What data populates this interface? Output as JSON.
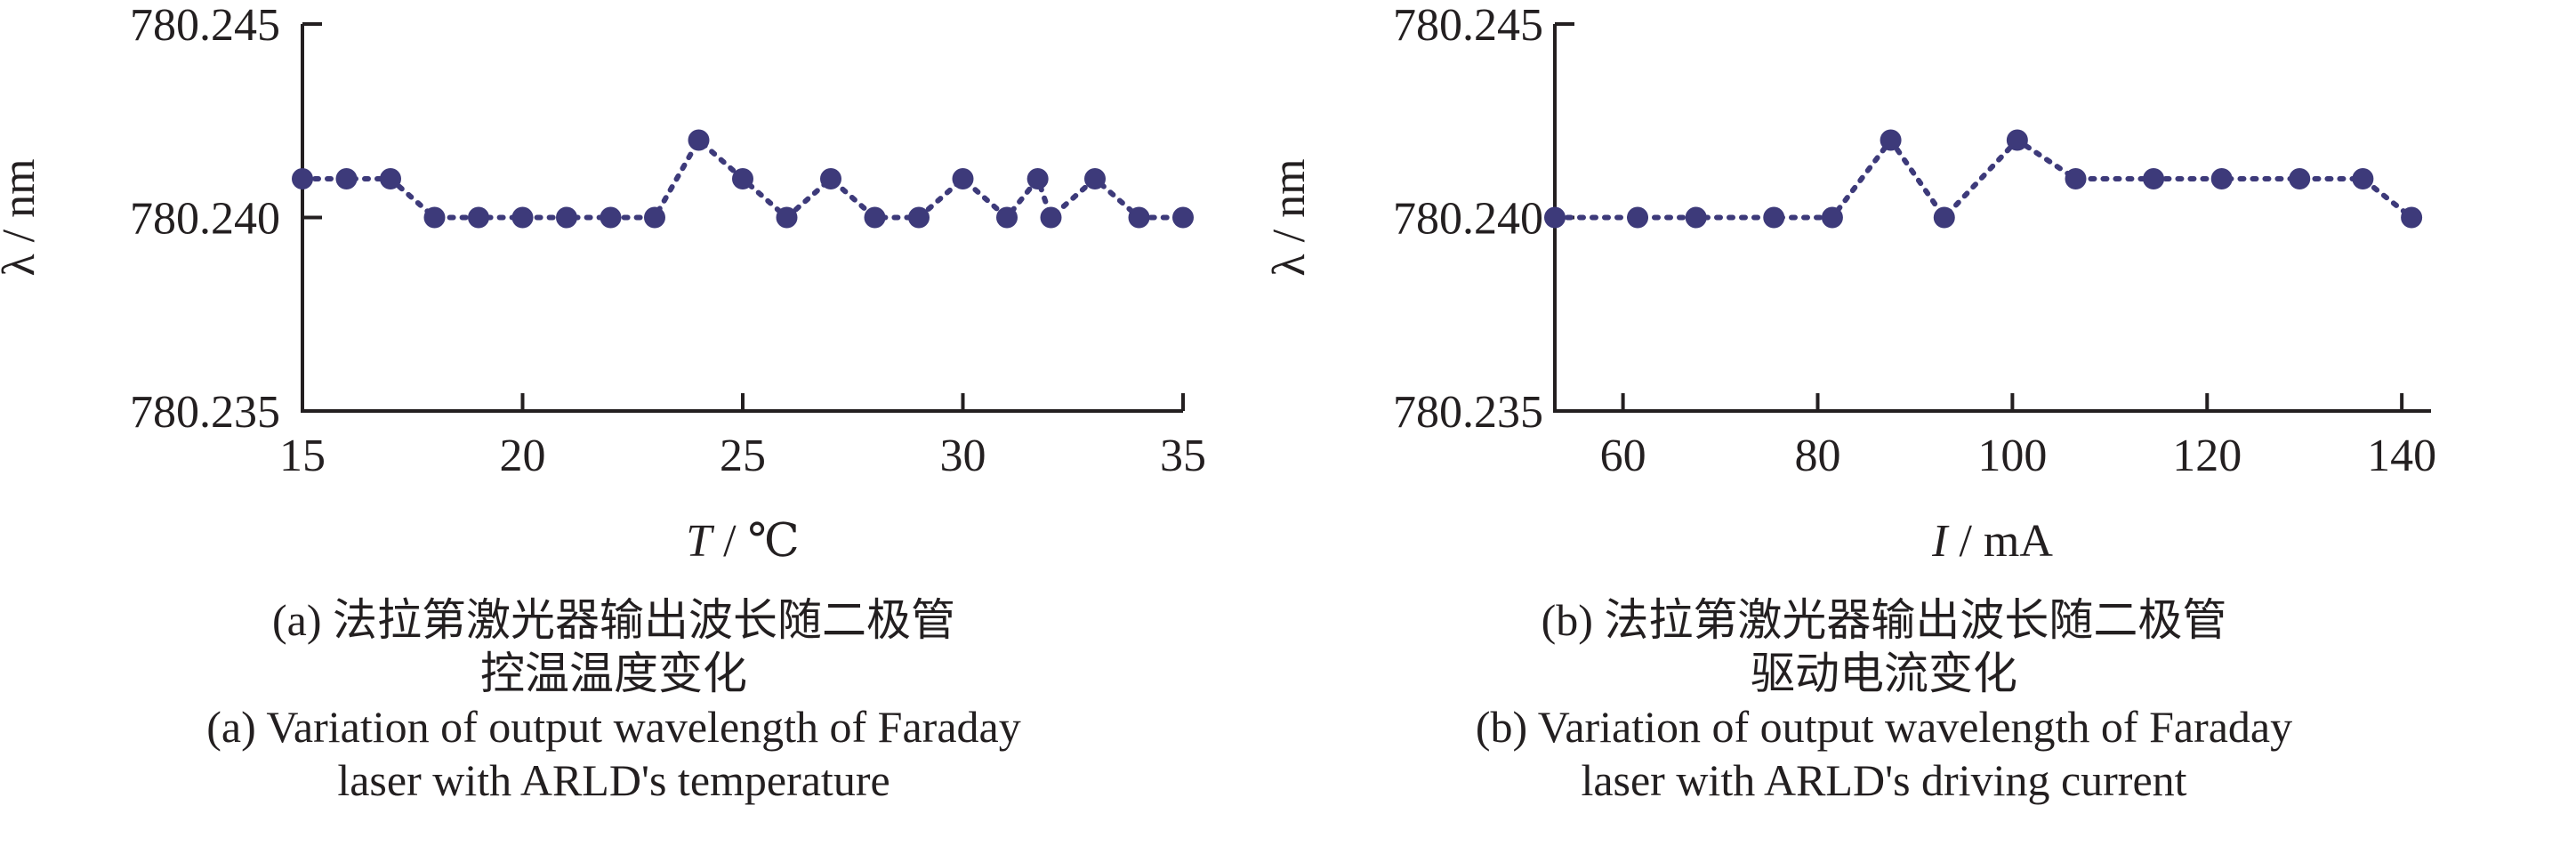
{
  "chart_data": [
    {
      "type": "scatter",
      "panel": "a",
      "xlabel_var": "T",
      "xlabel_unit": " / ℃",
      "ylabel": "λ / nm",
      "xlim": [
        15,
        35
      ],
      "ylim": [
        780.235,
        780.245
      ],
      "xticks": [
        "15",
        "20",
        "25",
        "30",
        "35"
      ],
      "xtick_values": [
        15,
        20,
        25,
        30,
        35
      ],
      "yticks": [
        "780.235",
        "780.240",
        "780.245"
      ],
      "ytick_values": [
        780.235,
        780.24,
        780.245
      ],
      "series": [
        {
          "x": [
            15,
            16,
            17,
            18,
            19,
            20,
            21,
            22,
            23,
            24,
            25,
            26,
            27,
            28,
            29,
            30,
            31,
            31.7,
            32,
            33,
            34,
            35
          ],
          "y": [
            780.241,
            780.241,
            780.241,
            780.24,
            780.24,
            780.24,
            780.24,
            780.24,
            780.24,
            780.242,
            780.241,
            780.24,
            780.241,
            780.24,
            780.24,
            780.241,
            780.24,
            780.241,
            780.24,
            780.241,
            780.24,
            780.24
          ]
        }
      ],
      "caption_cn": [
        "(a) 法拉第激光器输出波长随二极管",
        "控温温度变化"
      ],
      "caption_en": [
        "(a) Variation of output wavelength of Faraday",
        "laser with ARLD's temperature"
      ]
    },
    {
      "type": "scatter",
      "panel": "b",
      "xlabel_var": "I",
      "xlabel_unit": " / mA",
      "ylabel": "λ / nm",
      "xlim": [
        53,
        143
      ],
      "ylim": [
        780.235,
        780.245
      ],
      "xticks": [
        "60",
        "80",
        "100",
        "120",
        "140"
      ],
      "xtick_values": [
        60,
        80,
        100,
        120,
        140
      ],
      "yticks": [
        "780.235",
        "780.240",
        "780.245"
      ],
      "ytick_values": [
        780.235,
        780.24,
        780.245
      ],
      "series": [
        {
          "x": [
            53,
            61.5,
            67.5,
            75.5,
            81.5,
            87.5,
            93,
            100.5,
            106.5,
            114.5,
            121.5,
            129.5,
            136,
            141
          ],
          "y": [
            780.24,
            780.24,
            780.24,
            780.24,
            780.24,
            780.242,
            780.24,
            780.242,
            780.241,
            780.241,
            780.241,
            780.241,
            780.241,
            780.24
          ]
        }
      ],
      "caption_cn": [
        "(b) 法拉第激光器输出波长随二极管",
        "驱动电流变化"
      ],
      "caption_en": [
        "(b) Variation of output wavelength of Faraday",
        "laser with ARLD's driving current"
      ]
    }
  ]
}
